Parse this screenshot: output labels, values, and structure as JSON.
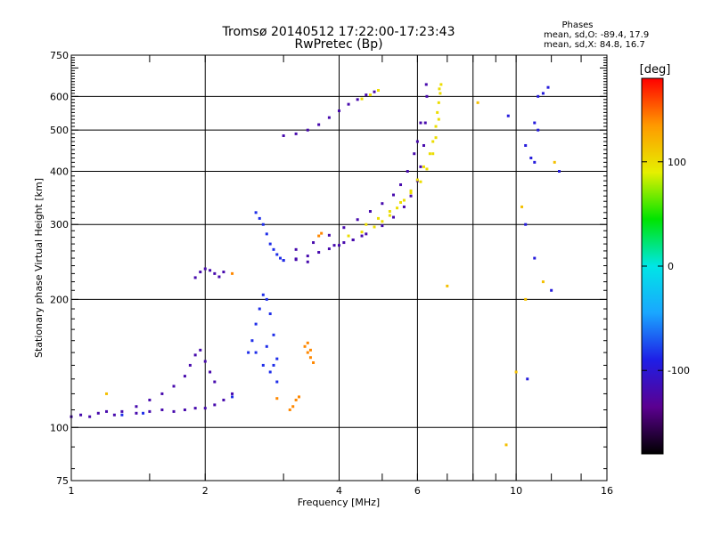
{
  "chart_data": {
    "type": "scatter",
    "title": "Tromsø 20140512 17:22:00-17:23:43",
    "subtitle": "RwPretec (Bp)",
    "xlabel": "Frequency [MHz]",
    "ylabel": "Stationary phase Virtual Height [km]",
    "x_scale": "log",
    "y_scale": "log",
    "xlim": [
      1,
      16
    ],
    "ylim": [
      75,
      750
    ],
    "x_ticks": [
      1,
      2,
      4,
      6,
      10,
      16
    ],
    "y_ticks": [
      75,
      100,
      200,
      300,
      400,
      500,
      600,
      750
    ],
    "x_minor_ticks": [
      1.5,
      3,
      5,
      7,
      8,
      9,
      12,
      14
    ],
    "x_gridlines": [
      2,
      4,
      6,
      8,
      10
    ],
    "y_gridlines": [
      100,
      200,
      300,
      400,
      500,
      600
    ],
    "grid": true,
    "stats": {
      "title": "Phases",
      "line_o": "mean, sd,O: -89.4, 17.9",
      "line_x": "mean, sd,X:  84.8, 16.7"
    },
    "colorbar": {
      "label": "[deg]",
      "min": -180,
      "max": 180,
      "ticks": [
        -100,
        0,
        100
      ],
      "palette": [
        "#000000",
        "#5b0090",
        "#1e1ee6",
        "#1aa6ff",
        "#00e6e6",
        "#00e400",
        "#e6f000",
        "#ff9900",
        "#ff0000"
      ]
    },
    "series": [
      {
        "phase": -120,
        "points": [
          [
            1.0,
            106
          ],
          [
            1.05,
            107
          ],
          [
            1.1,
            106
          ],
          [
            1.15,
            108
          ],
          [
            1.2,
            109
          ],
          [
            1.25,
            107
          ],
          [
            1.3,
            109
          ],
          [
            1.4,
            108
          ],
          [
            1.5,
            109
          ],
          [
            1.6,
            110
          ],
          [
            1.7,
            109
          ],
          [
            1.8,
            110
          ],
          [
            1.9,
            111
          ],
          [
            2.0,
            111
          ],
          [
            2.1,
            113
          ],
          [
            2.2,
            116
          ],
          [
            2.3,
            120
          ],
          [
            1.4,
            112
          ],
          [
            1.5,
            116
          ],
          [
            1.6,
            120
          ],
          [
            1.7,
            125
          ],
          [
            1.8,
            132
          ],
          [
            1.85,
            140
          ],
          [
            1.9,
            148
          ],
          [
            1.95,
            152
          ],
          [
            2.0,
            143
          ],
          [
            2.05,
            135
          ],
          [
            2.1,
            128
          ],
          [
            1.9,
            225
          ],
          [
            1.95,
            232
          ],
          [
            2.0,
            236
          ],
          [
            2.05,
            234
          ],
          [
            2.1,
            230
          ],
          [
            2.15,
            226
          ],
          [
            2.2,
            232
          ],
          [
            3.0,
            247
          ],
          [
            3.2,
            248
          ],
          [
            3.4,
            253
          ],
          [
            3.6,
            258
          ],
          [
            3.8,
            263
          ],
          [
            4.0,
            268
          ],
          [
            4.3,
            276
          ],
          [
            4.6,
            285
          ],
          [
            5.0,
            298
          ],
          [
            5.3,
            312
          ],
          [
            5.6,
            330
          ],
          [
            5.8,
            350
          ],
          [
            6.0,
            380
          ],
          [
            6.1,
            410
          ],
          [
            6.2,
            460
          ],
          [
            6.25,
            520
          ],
          [
            6.3,
            600
          ],
          [
            6.28,
            640
          ],
          [
            3.2,
            262
          ],
          [
            3.5,
            272
          ],
          [
            3.8,
            283
          ],
          [
            4.1,
            295
          ],
          [
            4.4,
            308
          ],
          [
            4.7,
            322
          ],
          [
            5.0,
            336
          ],
          [
            5.3,
            352
          ],
          [
            5.5,
            372
          ],
          [
            5.7,
            400
          ],
          [
            5.9,
            440
          ],
          [
            6.0,
            470
          ],
          [
            6.1,
            520
          ],
          [
            3.0,
            485
          ],
          [
            3.2,
            490
          ],
          [
            3.4,
            500
          ],
          [
            3.6,
            515
          ],
          [
            3.8,
            535
          ],
          [
            4.0,
            555
          ],
          [
            4.2,
            575
          ],
          [
            4.4,
            590
          ],
          [
            4.6,
            605
          ],
          [
            4.8,
            615
          ],
          [
            3.9,
            268
          ],
          [
            4.1,
            272
          ],
          [
            4.3,
            276
          ],
          [
            3.4,
            245
          ],
          [
            3.2,
            249
          ],
          [
            4.5,
            282
          ]
        ]
      },
      {
        "phase": -85,
        "points": [
          [
            2.5,
            150
          ],
          [
            2.55,
            160
          ],
          [
            2.6,
            175
          ],
          [
            2.65,
            190
          ],
          [
            2.7,
            205
          ],
          [
            2.75,
            200
          ],
          [
            2.8,
            185
          ],
          [
            2.85,
            165
          ],
          [
            2.9,
            145
          ],
          [
            2.6,
            150
          ],
          [
            2.7,
            140
          ],
          [
            2.8,
            135
          ],
          [
            2.9,
            128
          ],
          [
            2.75,
            155
          ],
          [
            2.85,
            140
          ],
          [
            2.6,
            320
          ],
          [
            2.7,
            300
          ],
          [
            2.75,
            285
          ],
          [
            2.8,
            270
          ],
          [
            2.85,
            262
          ],
          [
            2.9,
            255
          ],
          [
            2.95,
            250
          ],
          [
            3.0,
            247
          ],
          [
            2.65,
            310
          ],
          [
            1.3,
            107
          ],
          [
            1.45,
            108
          ],
          [
            2.3,
            118
          ]
        ]
      },
      {
        "phase": 100,
        "points": [
          [
            4.2,
            282
          ],
          [
            4.5,
            288
          ],
          [
            4.8,
            296
          ],
          [
            5.0,
            305
          ],
          [
            5.2,
            315
          ],
          [
            5.4,
            328
          ],
          [
            5.6,
            342
          ],
          [
            5.8,
            360
          ],
          [
            6.0,
            382
          ],
          [
            6.2,
            410
          ],
          [
            6.4,
            440
          ],
          [
            6.5,
            470
          ],
          [
            6.6,
            510
          ],
          [
            6.65,
            550
          ],
          [
            6.7,
            580
          ],
          [
            6.75,
            610
          ],
          [
            6.78,
            640
          ],
          [
            6.72,
            625
          ],
          [
            4.6,
            300
          ],
          [
            4.9,
            310
          ],
          [
            5.2,
            322
          ],
          [
            5.5,
            338
          ],
          [
            5.8,
            356
          ],
          [
            6.1,
            378
          ],
          [
            6.3,
            405
          ],
          [
            6.5,
            440
          ],
          [
            6.6,
            480
          ],
          [
            6.7,
            530
          ],
          [
            4.5,
            592
          ],
          [
            4.7,
            605
          ],
          [
            4.9,
            620
          ]
        ]
      },
      {
        "phase": 140,
        "points": [
          [
            3.1,
            110
          ],
          [
            3.15,
            112
          ],
          [
            3.2,
            116
          ],
          [
            3.25,
            118
          ],
          [
            3.35,
            155
          ],
          [
            3.4,
            150
          ],
          [
            3.45,
            146
          ],
          [
            3.5,
            142
          ],
          [
            3.45,
            152
          ],
          [
            3.4,
            158
          ],
          [
            3.6,
            282
          ],
          [
            3.65,
            286
          ],
          [
            2.3,
            230
          ],
          [
            2.9,
            117
          ]
        ]
      },
      {
        "phase": -95,
        "points": [
          [
            10.5,
            460
          ],
          [
            10.8,
            430
          ],
          [
            11.0,
            520
          ],
          [
            11.2,
            600
          ],
          [
            11.5,
            610
          ],
          [
            11.8,
            630
          ],
          [
            10.5,
            300
          ],
          [
            11.0,
            250
          ],
          [
            12.0,
            210
          ],
          [
            12.5,
            400
          ],
          [
            10.6,
            130
          ],
          [
            11.2,
            500
          ],
          [
            9.6,
            540
          ],
          [
            11.0,
            420
          ]
        ]
      },
      {
        "phase": 115,
        "points": [
          [
            8.2,
            580
          ],
          [
            10.3,
            330
          ],
          [
            10.5,
            200
          ],
          [
            11.5,
            220
          ],
          [
            12.2,
            420
          ],
          [
            9.5,
            91
          ],
          [
            10.0,
            135
          ],
          [
            7.0,
            215
          ],
          [
            1.2,
            120
          ]
        ]
      }
    ]
  }
}
